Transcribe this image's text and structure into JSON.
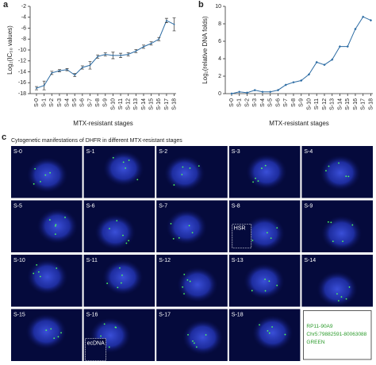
{
  "chart_data": [
    {
      "type": "line",
      "panel": "a",
      "y_label": "Log₂(IC₅₀ values)",
      "x_label": "MTX-resistant stages",
      "categories": [
        "S-0",
        "S-1",
        "S-2",
        "S-3",
        "S-4",
        "S-5",
        "S-6",
        "S-7",
        "S-8",
        "S-9",
        "S-10",
        "S-11",
        "S-12",
        "S-13",
        "S-14",
        "S-15",
        "S-16",
        "S-17",
        "S-18"
      ],
      "values": [
        -17,
        -16.5,
        -14.2,
        -13.8,
        -13.6,
        -14.6,
        -13.2,
        -12.8,
        -11.2,
        -10.8,
        -11,
        -11,
        -10.8,
        -10.2,
        -9.4,
        -8.8,
        -8,
        -4.6,
        -5.3
      ],
      "errors": [
        0.3,
        0.8,
        0.3,
        0.2,
        0.2,
        0.3,
        0.3,
        0.7,
        0.3,
        0.3,
        0.6,
        0.4,
        0.3,
        0.3,
        0.3,
        0.3,
        0.3,
        0.4,
        1.2
      ],
      "color": "#2e6da4",
      "ylim": [
        -18,
        -2
      ],
      "yticks": [
        -18,
        -16,
        -14,
        -12,
        -10,
        -8,
        -6,
        -4,
        -2
      ]
    },
    {
      "type": "line",
      "panel": "b",
      "y_label": "Log₂(relative DNA folds)",
      "x_label": "MTX-resistant stages",
      "categories": [
        "S-0",
        "S-1",
        "S-2",
        "S-3",
        "S-4",
        "S-5",
        "S-6",
        "S-7",
        "S-8",
        "S-9",
        "S-10",
        "S-11",
        "S-12",
        "S-13",
        "S-14",
        "S-15",
        "S-16",
        "S-17",
        "S-18"
      ],
      "values": [
        0,
        0.2,
        0.1,
        0.4,
        0.2,
        0.2,
        0.4,
        1.0,
        1.3,
        1.5,
        2.2,
        3.6,
        3.3,
        3.9,
        5.4,
        5.4,
        7.4,
        8.8,
        8.4
      ],
      "color": "#2e6da4",
      "ylim": [
        0,
        10
      ],
      "yticks": [
        0,
        2,
        4,
        6,
        8,
        10
      ]
    }
  ],
  "panel_c": {
    "panel": "c",
    "title": "Cytogenetic manifestations of DHFR in different MTX-resistant stages",
    "tiles": [
      "S-0",
      "S-1",
      "S-2",
      "S-3",
      "S-4",
      "S-5",
      "S-6",
      "S-7",
      "S-8",
      "S-9",
      "S-10",
      "S-11",
      "S-12",
      "S-13",
      "S-14",
      "S-15",
      "S-16",
      "S-17",
      "S-18"
    ],
    "insets": {
      "hsr": "HSR",
      "ecdna": "ecDNA"
    },
    "legend": [
      "RP11-90A9",
      "Chr5:79882591-80063088",
      "GREEN"
    ]
  }
}
